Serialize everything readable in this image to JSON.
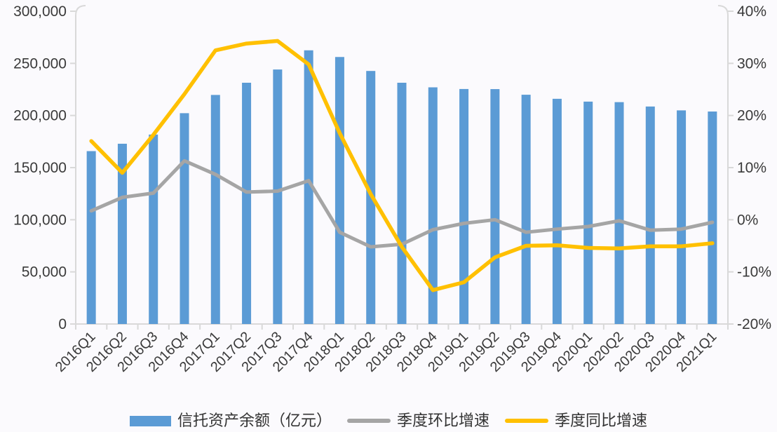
{
  "chart_data": {
    "type": "bar",
    "subtype": "combo-bar-line",
    "title": "",
    "categories": [
      "2016Q1",
      "2016Q2",
      "2016Q3",
      "2016Q4",
      "2017Q1",
      "2017Q2",
      "2017Q3",
      "2017Q4",
      "2018Q1",
      "2018Q2",
      "2018Q3",
      "2018Q4",
      "2019Q1",
      "2019Q2",
      "2019Q3",
      "2019Q4",
      "2020Q1",
      "2020Q2",
      "2020Q3",
      "2020Q4",
      "2021Q1"
    ],
    "series": [
      {
        "name": "信托资产余额（亿元）",
        "type": "bar",
        "axis": "left",
        "color": "#5B9BD5",
        "values": [
          165800,
          172900,
          181700,
          202200,
          219700,
          231400,
          244100,
          262500,
          256100,
          242700,
          231400,
          227000,
          225400,
          225300,
          219900,
          216000,
          213300,
          212800,
          208600,
          204900,
          203800
        ]
      },
      {
        "name": "季度环比增速",
        "type": "line",
        "axis": "right",
        "color": "#A5A5A5",
        "values": [
          1.7,
          4.3,
          5.1,
          11.3,
          8.7,
          5.3,
          5.5,
          7.5,
          -2.4,
          -5.2,
          -4.7,
          -1.9,
          -0.7,
          0.0,
          -2.4,
          -1.8,
          -1.3,
          -0.2,
          -2.0,
          -1.8,
          -0.5
        ]
      },
      {
        "name": "季度同比增速",
        "type": "line",
        "axis": "right",
        "color": "#FFC000",
        "values": [
          15.1,
          9.0,
          16.3,
          24.1,
          32.5,
          33.8,
          34.3,
          29.8,
          16.6,
          4.9,
          -5.2,
          -13.5,
          -12.0,
          -7.2,
          -5.0,
          -4.9,
          -5.4,
          -5.5,
          -5.1,
          -5.1,
          -4.5
        ]
      }
    ],
    "left_axis": {
      "min": 0,
      "max": 300000,
      "step": 50000,
      "tick_labels": [
        "0",
        "50,000",
        "100,000",
        "150,000",
        "200,000",
        "250,000",
        "300,000"
      ]
    },
    "right_axis": {
      "min": -20,
      "max": 40,
      "step": 10,
      "tick_labels": [
        "-20%",
        "-10%",
        "0%",
        "10%",
        "20%",
        "30%",
        "40%"
      ]
    },
    "grid": false,
    "legend_position": "bottom",
    "x_label_rotation_deg": -45
  },
  "colors": {
    "bar": "#5B9BD5",
    "qoq_line": "#A5A5A5",
    "yoy_line": "#FFC000",
    "axis_line": "#D9D9D9",
    "text": "#3A3A3A",
    "background": "#FBFAFD"
  }
}
